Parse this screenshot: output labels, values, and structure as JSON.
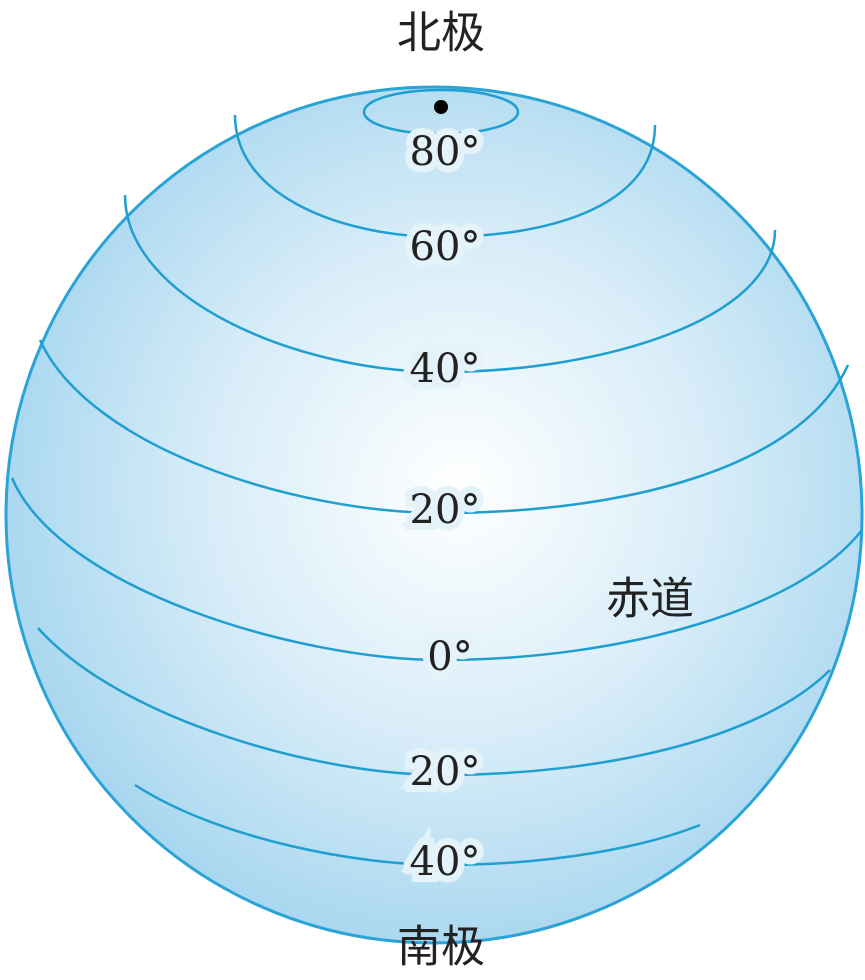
{
  "north_pole": "北极",
  "south_pole": "南极",
  "equator": "赤道",
  "latitudes": [
    "80°",
    "60°",
    "40°",
    "20°",
    "0°",
    "20°",
    "40°"
  ]
}
